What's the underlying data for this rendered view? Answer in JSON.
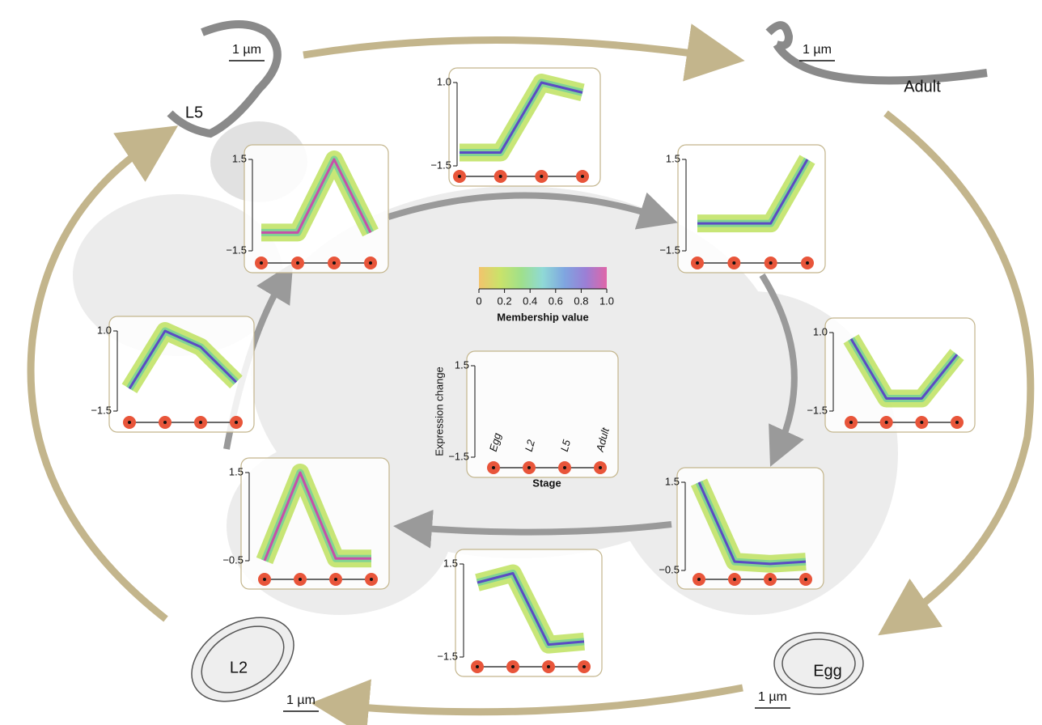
{
  "chart_data": [
    {
      "type": "line",
      "ylim": [
        -1.5,
        1
      ],
      "yticks": [
        {
          "value": 1,
          "label": "1.0"
        },
        {
          "value": -1.5,
          "label": "−1.5"
        }
      ],
      "categories": [
        null,
        null,
        null,
        null
      ],
      "values": [
        -1.1,
        -1.1,
        1.0,
        0.7
      ],
      "color": "#5b4bc4"
    },
    {
      "type": "line",
      "ylim": [
        -1.5,
        1.5
      ],
      "yticks": [
        1.5,
        {
          "value": -1.5,
          "label": "−1.5"
        }
      ],
      "categories": [
        null,
        null,
        null,
        null
      ],
      "values": [
        -0.6,
        -0.6,
        -0.6,
        1.5
      ],
      "color": "#5b4bc4"
    },
    {
      "type": "line",
      "ylim": [
        -1.5,
        1
      ],
      "yticks": [
        {
          "value": 1,
          "label": "1.0"
        },
        {
          "value": -1.5,
          "label": "−1.5"
        }
      ],
      "categories": [
        null,
        null,
        null,
        null
      ],
      "values": [
        0.8,
        -1.1,
        -1.1,
        0.3
      ],
      "color": "#5b4bc4"
    },
    {
      "type": "line",
      "ylim": [
        -0.5,
        1.5
      ],
      "yticks": [
        1.5,
        {
          "value": -0.5,
          "label": "−0.5"
        }
      ],
      "categories": [
        null,
        null,
        null,
        null
      ],
      "values": [
        1.5,
        -0.3,
        -0.35,
        -0.3
      ],
      "color": "#5b4bc4"
    },
    {
      "type": "line",
      "ylim": [
        -1.5,
        1.5
      ],
      "yticks": [
        1.5,
        {
          "value": -1.5,
          "label": "−1.5"
        }
      ],
      "categories": [
        null,
        null,
        null,
        null
      ],
      "values": [
        0.9,
        1.2,
        -1.1,
        -1.0
      ],
      "color": "#5b4bc4"
    },
    {
      "type": "line",
      "ylim": [
        -0.5,
        1.5
      ],
      "yticks": [
        1.5,
        {
          "value": -0.5,
          "label": "−0.5"
        }
      ],
      "categories": [
        null,
        null,
        null,
        null
      ],
      "values": [
        -0.5,
        1.5,
        -0.45,
        -0.45
      ],
      "color": "#c74fa8"
    },
    {
      "type": "line",
      "ylim": [
        -1.5,
        1
      ],
      "yticks": [
        {
          "value": 1,
          "label": "1.0"
        },
        {
          "value": -1.5,
          "label": "−1.5"
        }
      ],
      "categories": [
        null,
        null,
        null,
        null
      ],
      "values": [
        -0.8,
        1.0,
        0.5,
        -0.6
      ],
      "color": "#5b4bc4"
    },
    {
      "type": "line",
      "ylim": [
        -1.5,
        1.5
      ],
      "yticks": [
        1.5,
        {
          "value": -1.5,
          "label": "−1.5"
        }
      ],
      "categories": [
        null,
        null,
        null,
        null
      ],
      "values": [
        -0.9,
        -0.9,
        1.5,
        -0.9
      ],
      "color": "#c74fa8"
    },
    {
      "type": "line",
      "xlabel": "Stage",
      "ylabel": "Expression change",
      "ylim": [
        -1.5,
        1.5
      ],
      "yticks": [
        1.5,
        {
          "value": -1.5,
          "label": "−1.5"
        }
      ],
      "categories": [
        "Egg",
        "L2",
        "L5",
        "Adult"
      ]
    }
  ],
  "colorbar": {
    "title": "Membership value",
    "lim": [
      0,
      1
    ],
    "ticks": [
      0,
      0.2,
      0.4,
      0.6,
      0.8,
      {
        "value": 1,
        "label": "1.0"
      }
    ],
    "colors": [
      "#f2c46d",
      "#c9e36a",
      "#9fe08c",
      "#8fd9d6",
      "#7fa6e0",
      "#9a7fd6",
      "#e066a8"
    ]
  },
  "stages": [
    {
      "label": "L5",
      "scale": "1 µm"
    },
    {
      "label": "Adult",
      "scale": "1 µm"
    },
    {
      "label": "Egg",
      "scale": "1 µm"
    },
    {
      "label": "L2",
      "scale": "1 µm"
    }
  ]
}
